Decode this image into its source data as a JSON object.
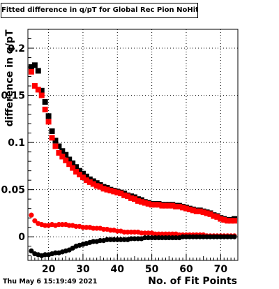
{
  "chart_data": {
    "type": "scatter",
    "title": "Fitted difference in q/pT for Global Rec Pion NoHits",
    "xlabel": "No. of Fit Points",
    "ylabel": "difference in q/pT",
    "timestamp": "Thu May  6 15:19:49 2021",
    "xlim": [
      14,
      75
    ],
    "ylim": [
      -0.025,
      0.22
    ],
    "xticks": [
      20,
      30,
      40,
      50,
      60,
      70
    ],
    "yticks": [
      0,
      0.05,
      0.1,
      0.15,
      0.2
    ],
    "ytick_labels": [
      "0",
      "0.05",
      "0.1",
      "0.15",
      "0.2"
    ],
    "grid": true,
    "marker_colors": {
      "black": "#000000",
      "red": "#ff0000"
    },
    "series": [
      {
        "marker": "square",
        "color": "#000000",
        "x": [
          15,
          16,
          17,
          18,
          19,
          20,
          21,
          22,
          23,
          24,
          25,
          26,
          27,
          28,
          29,
          30,
          31,
          32,
          33,
          34,
          35,
          36,
          37,
          38,
          39,
          40,
          41,
          42,
          43,
          44,
          45,
          46,
          47,
          48,
          49,
          50,
          51,
          52,
          53,
          54,
          55,
          56,
          57,
          58,
          59,
          60,
          61,
          62,
          63,
          64,
          65,
          66,
          67,
          68,
          69,
          70,
          71,
          72,
          73,
          74
        ],
        "y": [
          0.18,
          0.182,
          0.176,
          0.155,
          0.143,
          0.128,
          0.112,
          0.102,
          0.096,
          0.091,
          0.087,
          0.082,
          0.078,
          0.074,
          0.07,
          0.067,
          0.064,
          0.061,
          0.059,
          0.057,
          0.055,
          0.053,
          0.052,
          0.05,
          0.049,
          0.048,
          0.047,
          0.046,
          0.044,
          0.043,
          0.042,
          0.04,
          0.039,
          0.037,
          0.036,
          0.035,
          0.035,
          0.035,
          0.034,
          0.034,
          0.034,
          0.034,
          0.033,
          0.033,
          0.032,
          0.031,
          0.03,
          0.029,
          0.028,
          0.028,
          0.027,
          0.026,
          0.025,
          0.023,
          0.022,
          0.02,
          0.019,
          0.018,
          0.018,
          0.019
        ]
      },
      {
        "marker": "square",
        "color": "#ff0000",
        "x": [
          15,
          16,
          17,
          18,
          19,
          20,
          21,
          22,
          23,
          24,
          25,
          26,
          27,
          28,
          29,
          30,
          31,
          32,
          33,
          34,
          35,
          36,
          37,
          38,
          39,
          40,
          41,
          42,
          43,
          44,
          45,
          46,
          47,
          48,
          49,
          50,
          51,
          52,
          53,
          54,
          55,
          56,
          57,
          58,
          59,
          60,
          61,
          62,
          63,
          64,
          65,
          66,
          67,
          68,
          69,
          70,
          71,
          72,
          73,
          74
        ],
        "y": [
          0.175,
          0.16,
          0.156,
          0.15,
          0.135,
          0.122,
          0.105,
          0.096,
          0.089,
          0.085,
          0.081,
          0.077,
          0.073,
          0.069,
          0.066,
          0.063,
          0.06,
          0.058,
          0.056,
          0.054,
          0.053,
          0.051,
          0.05,
          0.049,
          0.048,
          0.047,
          0.046,
          0.044,
          0.043,
          0.041,
          0.04,
          0.038,
          0.037,
          0.036,
          0.035,
          0.034,
          0.034,
          0.034,
          0.033,
          0.033,
          0.033,
          0.033,
          0.032,
          0.032,
          0.031,
          0.03,
          0.029,
          0.028,
          0.027,
          0.027,
          0.026,
          0.025,
          0.024,
          0.022,
          0.021,
          0.019,
          0.018,
          0.017,
          0.017,
          0.017
        ]
      },
      {
        "marker": "circle",
        "color": "#ff0000",
        "x": [
          15,
          16,
          17,
          18,
          19,
          20,
          21,
          22,
          23,
          24,
          25,
          26,
          27,
          28,
          29,
          30,
          31,
          32,
          33,
          34,
          35,
          36,
          37,
          38,
          39,
          40,
          41,
          42,
          43,
          44,
          45,
          46,
          47,
          48,
          49,
          50,
          51,
          52,
          53,
          54,
          55,
          56,
          57,
          58,
          59,
          60,
          61,
          62,
          63,
          64,
          65,
          66,
          67,
          68,
          69,
          70,
          71,
          72,
          73,
          74
        ],
        "y": [
          0.023,
          0.017,
          0.014,
          0.013,
          0.012,
          0.012,
          0.013,
          0.012,
          0.013,
          0.013,
          0.013,
          0.012,
          0.012,
          0.011,
          0.011,
          0.01,
          0.01,
          0.01,
          0.009,
          0.009,
          0.009,
          0.008,
          0.008,
          0.007,
          0.007,
          0.006,
          0.006,
          0.005,
          0.005,
          0.005,
          0.005,
          0.005,
          0.004,
          0.004,
          0.004,
          0.004,
          0.003,
          0.003,
          0.003,
          0.003,
          0.003,
          0.003,
          0.003,
          0.002,
          0.002,
          0.002,
          0.002,
          0.002,
          0.002,
          0.002,
          0.002,
          0.001,
          0.001,
          0.001,
          0.001,
          0.001,
          0.001,
          0.001,
          0.001,
          0.001
        ]
      },
      {
        "marker": "circle",
        "color": "#000000",
        "x": [
          15,
          16,
          17,
          18,
          19,
          20,
          21,
          22,
          23,
          24,
          25,
          26,
          27,
          28,
          29,
          30,
          31,
          32,
          33,
          34,
          35,
          36,
          37,
          38,
          39,
          40,
          41,
          42,
          43,
          44,
          45,
          46,
          47,
          48,
          49,
          50,
          51,
          52,
          53,
          54,
          55,
          56,
          57,
          58,
          59,
          60,
          61,
          62,
          63,
          64,
          65,
          66,
          67,
          68,
          69,
          70,
          71,
          72,
          73,
          74
        ],
        "y": [
          -0.015,
          -0.018,
          -0.019,
          -0.02,
          -0.019,
          -0.019,
          -0.018,
          -0.017,
          -0.017,
          -0.016,
          -0.015,
          -0.014,
          -0.012,
          -0.01,
          -0.009,
          -0.008,
          -0.007,
          -0.006,
          -0.005,
          -0.005,
          -0.004,
          -0.004,
          -0.003,
          -0.003,
          -0.003,
          -0.003,
          -0.003,
          -0.003,
          -0.003,
          -0.002,
          -0.002,
          -0.002,
          -0.002,
          -0.001,
          -0.001,
          -0.001,
          -0.001,
          -0.001,
          -0.001,
          -0.001,
          -0.001,
          -0.001,
          -0.001,
          -0.001,
          0,
          0,
          0,
          0,
          0,
          0,
          0,
          0,
          0,
          0,
          0,
          0,
          0,
          0,
          0,
          0
        ]
      }
    ]
  }
}
